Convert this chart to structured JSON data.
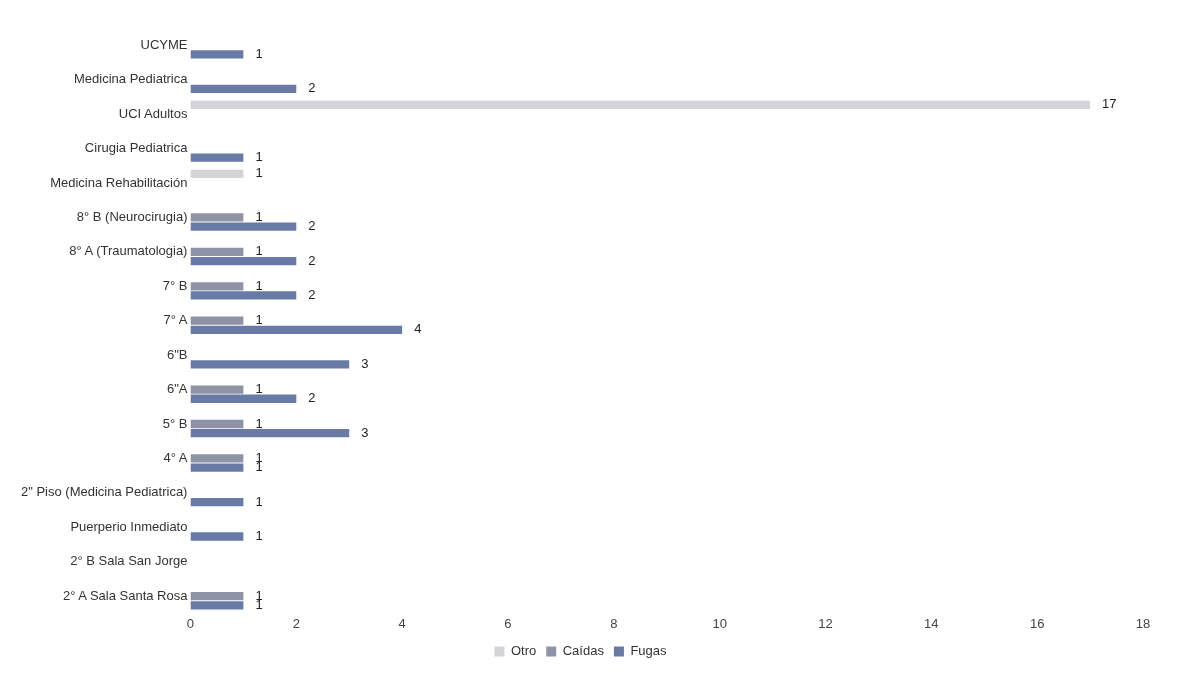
{
  "chart_data": {
    "type": "bar",
    "orientation": "horizontal",
    "categories": [
      "UCYME",
      "Medicina Pediatrica",
      "UCI Adultos",
      "Cirugia Pediatrica",
      "Medicina Rehabilitación",
      "8° B (Neurocirugia)",
      "8° A (Traumatologia)",
      "7° B",
      "7° A",
      "6\"B",
      "6\"A",
      "5° B",
      "4° A",
      "2\" Piso (Medicina Pediatrica)",
      "Puerperio Inmediato",
      "2° B Sala San Jorge",
      "2° A Sala Santa Rosa"
    ],
    "series": [
      {
        "name": "Otro",
        "color": "#d4d4d8",
        "values": [
          null,
          null,
          17,
          null,
          1,
          null,
          null,
          null,
          null,
          null,
          null,
          null,
          null,
          null,
          null,
          null,
          null
        ]
      },
      {
        "name": "Caídas",
        "color": "#8e94a6",
        "values": [
          null,
          null,
          null,
          null,
          null,
          1,
          1,
          1,
          1,
          null,
          1,
          1,
          1,
          null,
          null,
          null,
          1
        ]
      },
      {
        "name": "Fugas",
        "color": "#6a7aa6",
        "values": [
          1,
          2,
          null,
          1,
          null,
          2,
          2,
          2,
          4,
          3,
          2,
          3,
          1,
          1,
          1,
          null,
          1
        ]
      }
    ],
    "xlim": [
      0,
      18
    ],
    "xticks": [
      0,
      2,
      4,
      6,
      8,
      10,
      12,
      14,
      16,
      18
    ],
    "grid": false,
    "legend": "bottom",
    "data_labels": true
  }
}
